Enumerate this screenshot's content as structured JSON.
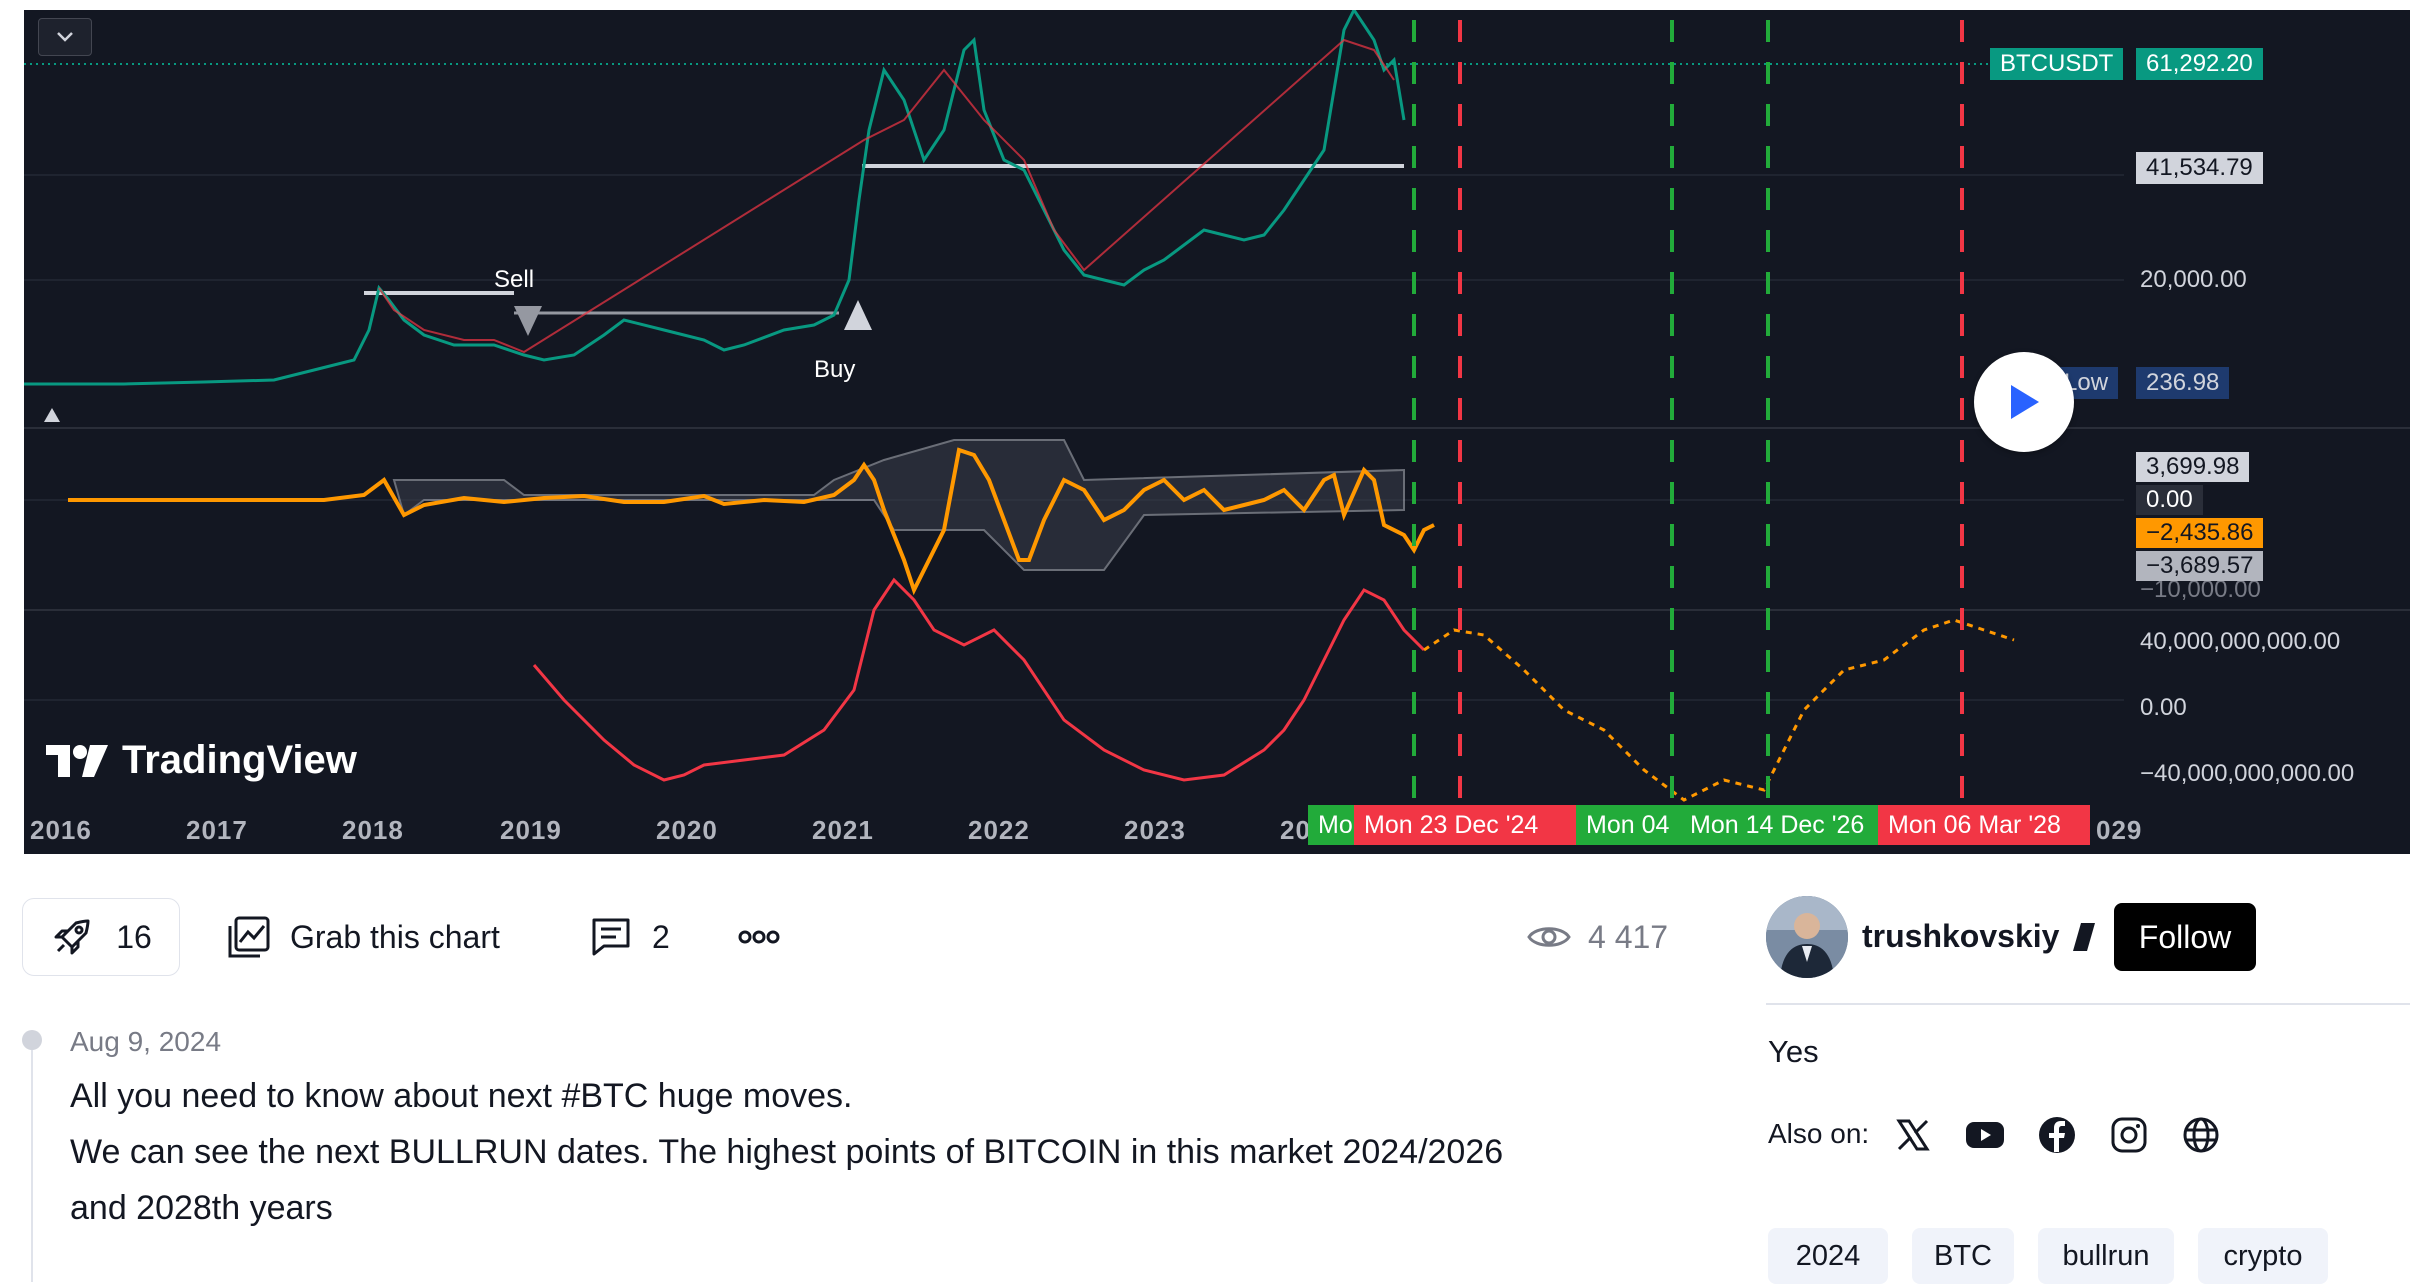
{
  "chart": {
    "symbol_label": "BTCUSDT",
    "last_price": "61,292.20",
    "line_price": "41,534.79",
    "low_label": "Low",
    "low_price": "236.98",
    "price_axis": [
      "20,000.00"
    ],
    "oscillator_axis": [
      "3,699.98",
      "0.00",
      "−2,435.86",
      "−3,689.57",
      "−10,000.00"
    ],
    "volume_axis": [
      "40,000,000,000.00",
      "0.00",
      "−40,000,000,000.00"
    ],
    "years": [
      "2016",
      "2017",
      "2018",
      "2019",
      "2020",
      "2021",
      "2022",
      "2023",
      "20",
      "029"
    ],
    "date_tags": [
      "Mo",
      "Mon 23 Dec '24",
      "Mon 04",
      "Mon 14 Dec '26",
      "Mon 06 Mar '28"
    ],
    "signal_sell": "Sell",
    "signal_buy": "Buy",
    "logo_text": "TradingView",
    "colors": {
      "bg": "#131722",
      "green": "#089981",
      "red": "#f23645",
      "orange": "#ff9800",
      "dark_blue": "#1e3a6e"
    }
  },
  "toolbar": {
    "boost_count": "16",
    "grab_label": "Grab this chart",
    "comments_count": "2",
    "views": "4 417",
    "icons": [
      "rocket-icon",
      "chart-icon",
      "comment-icon",
      "more-icon",
      "eye-icon"
    ]
  },
  "author": {
    "name": "trushkovskiy",
    "follow_label": "Follow",
    "bio": "Yes",
    "also_on_label": "Also on:",
    "socials": [
      "x-icon",
      "youtube-icon",
      "facebook-icon",
      "instagram-icon",
      "website-icon"
    ],
    "tags": [
      "2024",
      "BTC",
      "bullrun",
      "crypto"
    ]
  },
  "post": {
    "date": "Aug 9, 2024",
    "lines": [
      "All you need to know about next #BTC huge moves.",
      "We can see the next BULLRUN dates. The highest points of BITCOIN in this market 2024/2026",
      "and 2028th years"
    ]
  }
}
